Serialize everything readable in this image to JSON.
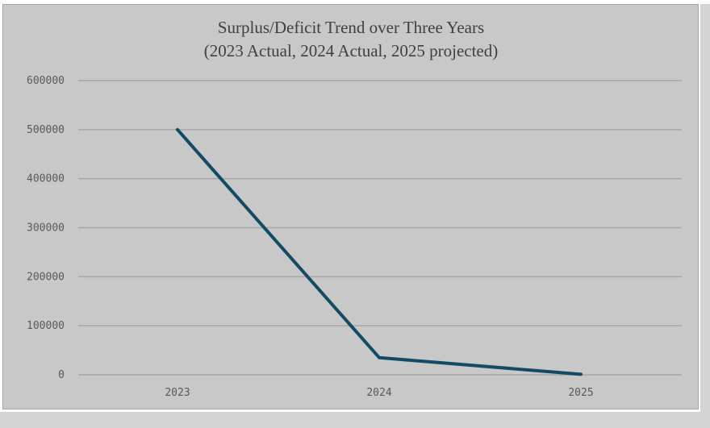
{
  "chart_data": {
    "type": "line",
    "title": "Surplus/Deficit Trend over Three Years",
    "subtitle": "(2023 Actual, 2024 Actual, 2025 projected)",
    "categories": [
      "2023",
      "2024",
      "2025"
    ],
    "series": [
      {
        "name": "Surplus/Deficit",
        "values": [
          500000,
          35000,
          1000
        ],
        "color": "#124b63"
      }
    ],
    "ylim": [
      0,
      600000
    ],
    "yticks": [
      "0",
      "100000",
      "200000",
      "300000",
      "400000",
      "500000",
      "600000"
    ],
    "grid": true,
    "xlabel": "",
    "ylabel": ""
  }
}
